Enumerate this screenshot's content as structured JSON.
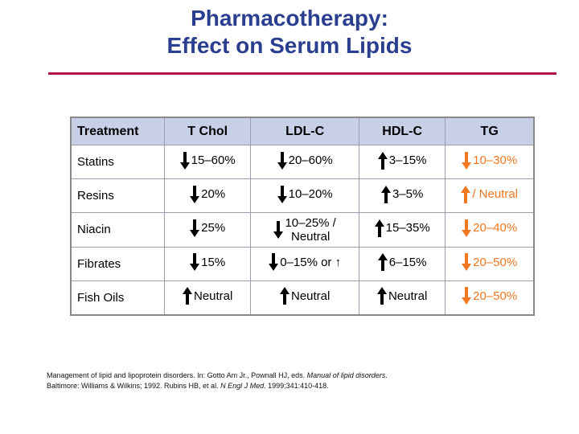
{
  "slide": {
    "title_line1": "Pharmacotherapy:",
    "title_line2": "Effect on Serum Lipids",
    "accent_color": "#b0124d",
    "title_color": "#2a3f8f"
  },
  "table": {
    "headers": [
      "Treatment",
      "T Chol",
      "LDL-C",
      "HDL-C",
      "TG"
    ],
    "header_bg": "#c8d0e8",
    "tg_color": "#f07820",
    "rows": [
      {
        "treatment": "Statins",
        "tchol": {
          "arrow": "down",
          "text": "15–60%"
        },
        "ldl": {
          "arrow": "down",
          "text": "20–60%"
        },
        "hdl": {
          "arrow": "up",
          "text": "3–15%"
        },
        "tg": {
          "arrow": "down",
          "text": "10–30%"
        }
      },
      {
        "treatment": "Resins",
        "tchol": {
          "arrow": "down",
          "text": "20%"
        },
        "ldl": {
          "arrow": "down",
          "text": "10–20%"
        },
        "hdl": {
          "arrow": "up",
          "text": "3–5%"
        },
        "tg": {
          "arrow": "up",
          "text": "/ Neutral"
        }
      },
      {
        "treatment": "Niacin",
        "tchol": {
          "arrow": "down",
          "text": "25%"
        },
        "ldl": {
          "arrow": "down",
          "text_line1": "10–25% /",
          "text_line2": "Neutral"
        },
        "hdl": {
          "arrow": "up",
          "text": "15–35%"
        },
        "tg": {
          "arrow": "down",
          "text": "20–40%"
        }
      },
      {
        "treatment": "Fibrates",
        "tchol": {
          "arrow": "down",
          "text": "15%"
        },
        "ldl": {
          "arrow": "down",
          "text": "0–15% or ↑"
        },
        "hdl": {
          "arrow": "up",
          "text": "6–15%"
        },
        "tg": {
          "arrow": "down",
          "text": "20–50%"
        }
      },
      {
        "treatment": "Fish Oils",
        "tchol": {
          "arrow": "up",
          "text": "Neutral"
        },
        "ldl": {
          "arrow": "up",
          "text": "Neutral"
        },
        "hdl": {
          "arrow": "up",
          "text": "Neutral"
        },
        "tg": {
          "arrow": "down",
          "text": "20–50%"
        }
      }
    ]
  },
  "reference": {
    "line1_a": "Management of lipid and lipoprotein disorders. In: Gotto Am Jr., Pownall HJ, eds. ",
    "line1_italic": "Manual of lipid disorders",
    "line1_b": ".",
    "line2_a": "Baltimore: Williams & Wilkins; 1992. Rubins HB, et al. ",
    "line2_italic": "N Engl J Med",
    "line2_b": ". 1999;341:410-418."
  }
}
